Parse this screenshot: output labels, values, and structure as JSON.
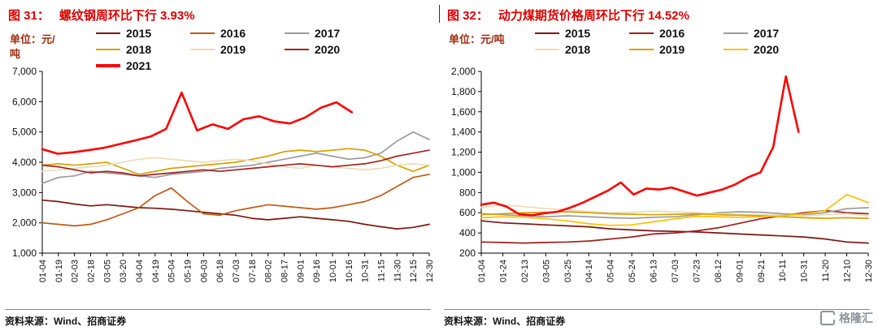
{
  "page": {
    "source_text": "资料来源：Wind、招商证券",
    "logo_text": "格隆汇",
    "accent_title_red": "#dd0000",
    "accent_unit_red": "#a02c12"
  },
  "chart_data": [
    {
      "type": "line",
      "figure_label": "图 31：",
      "title": "螺纹钢周环比下行 3.93%",
      "unit_label": "单位：元/吨",
      "legend_position": "top",
      "grid": false,
      "ylim": [
        1000,
        7000
      ],
      "ytick_values": [
        1000,
        2000,
        3000,
        4000,
        5000,
        6000,
        7000
      ],
      "ytick_labels": [
        "1,000",
        "2,000",
        "3,000",
        "4,000",
        "5,000",
        "6,000",
        "7,000"
      ],
      "xlabels": [
        "01-04",
        "01-19",
        "02-03",
        "02-18",
        "03-05",
        "03-20",
        "04-04",
        "04-19",
        "05-04",
        "05-19",
        "06-03",
        "06-18",
        "07-03",
        "07-18",
        "08-02",
        "08-17",
        "09-01",
        "09-16",
        "10-01",
        "10-16",
        "10-31",
        "11-15",
        "11-30",
        "12-15",
        "12-30"
      ],
      "series": [
        {
          "name": "2015",
          "color": "#7b1712",
          "width": 1.7,
          "span": 1.0,
          "values": [
            2750,
            2700,
            2620,
            2560,
            2600,
            2550,
            2500,
            2480,
            2450,
            2400,
            2350,
            2300,
            2250,
            2150,
            2100,
            2150,
            2200,
            2150,
            2100,
            2050,
            1950,
            1870,
            1800,
            1850,
            1950
          ]
        },
        {
          "name": "2016",
          "color": "#c05a15",
          "width": 1.7,
          "span": 1.0,
          "values": [
            2000,
            1950,
            1900,
            1950,
            2100,
            2300,
            2500,
            2900,
            3150,
            2700,
            2300,
            2250,
            2400,
            2500,
            2600,
            2550,
            2500,
            2450,
            2500,
            2600,
            2700,
            2900,
            3200,
            3500,
            3600
          ]
        },
        {
          "name": "2017",
          "color": "#9b9b9b",
          "width": 1.7,
          "span": 1.0,
          "values": [
            3300,
            3500,
            3550,
            3700,
            3650,
            3600,
            3550,
            3500,
            3600,
            3650,
            3700,
            3800,
            3850,
            3900,
            4000,
            4100,
            4200,
            4300,
            4200,
            4100,
            4150,
            4300,
            4700,
            5000,
            4750
          ]
        },
        {
          "name": "2018",
          "color": "#d8a000",
          "width": 1.7,
          "span": 1.0,
          "values": [
            3900,
            3950,
            3900,
            3950,
            4000,
            3800,
            3600,
            3700,
            3800,
            3850,
            3900,
            3950,
            4000,
            4100,
            4200,
            4350,
            4400,
            4350,
            4400,
            4450,
            4400,
            4200,
            3900,
            3700,
            3900
          ]
        },
        {
          "name": "2019",
          "color": "#e9ddb6",
          "width": 1.7,
          "span": 1.0,
          "values": [
            3700,
            3750,
            3800,
            3850,
            3900,
            4000,
            4100,
            4150,
            4100,
            4050,
            4000,
            4050,
            4100,
            4050,
            3950,
            3850,
            3800,
            3900,
            3850,
            3800,
            3750,
            3800,
            3900,
            3950,
            3900
          ]
        },
        {
          "name": "2020",
          "color": "#a32320",
          "width": 1.7,
          "span": 1.0,
          "values": [
            3900,
            3850,
            3750,
            3650,
            3700,
            3650,
            3550,
            3600,
            3650,
            3700,
            3750,
            3700,
            3750,
            3800,
            3850,
            3900,
            3950,
            3900,
            3850,
            3900,
            3950,
            4050,
            4200,
            4300,
            4400
          ]
        },
        {
          "name": "2021",
          "color": "#ff0000",
          "width": 2.6,
          "span": 0.8,
          "values": [
            4430,
            4280,
            4330,
            4400,
            4480,
            4600,
            4720,
            4850,
            5100,
            6300,
            5050,
            5250,
            5100,
            5420,
            5520,
            5350,
            5280,
            5480,
            5800,
            5980,
            5650
          ]
        }
      ]
    },
    {
      "type": "line",
      "figure_label": "图 32：",
      "title": "动力煤期货价格周环比下行 14.52%",
      "unit_label": "单位：元/吨",
      "legend_position": "top",
      "grid": false,
      "ylim": [
        200,
        2000
      ],
      "ytick_values": [
        200,
        400,
        600,
        800,
        1000,
        1200,
        1400,
        1600,
        1800,
        2000
      ],
      "ytick_labels": [
        "200",
        "400",
        "600",
        "800",
        "1,000",
        "1,200",
        "1,400",
        "1,600",
        "1,800",
        "2,000"
      ],
      "xlabels": [
        "01-04",
        "01-24",
        "02-13",
        "03-05",
        "03-25",
        "04-14",
        "05-04",
        "05-24",
        "06-13",
        "07-03",
        "07-23",
        "08-12",
        "09-01",
        "09-21",
        "10-11",
        "10-31",
        "11-20",
        "12-10",
        "12-30"
      ],
      "series": [
        {
          "name": "2015",
          "color": "#7b1712",
          "width": 1.7,
          "span": 1.0,
          "values": [
            520,
            500,
            490,
            480,
            470,
            460,
            440,
            430,
            420,
            415,
            410,
            400,
            390,
            380,
            370,
            360,
            340,
            310,
            300
          ]
        },
        {
          "name": "2016",
          "color": "#9b211a",
          "width": 1.7,
          "span": 1.0,
          "values": [
            310,
            305,
            300,
            305,
            310,
            320,
            340,
            360,
            390,
            400,
            420,
            450,
            495,
            540,
            570,
            600,
            620,
            600,
            590
          ]
        },
        {
          "name": "2017",
          "color": "#9b9b9b",
          "width": 1.7,
          "span": 1.0,
          "values": [
            590,
            580,
            570,
            560,
            570,
            560,
            550,
            545,
            555,
            560,
            580,
            600,
            610,
            605,
            590,
            580,
            600,
            640,
            650
          ]
        },
        {
          "name": "2018",
          "color": "#e9ddb6",
          "width": 1.7,
          "span": 1.0,
          "values": [
            650,
            680,
            660,
            640,
            630,
            610,
            600,
            605,
            615,
            610,
            600,
            590,
            585,
            580,
            575,
            570,
            580,
            590,
            570
          ]
        },
        {
          "name": "2019",
          "color": "#d8a000",
          "width": 1.7,
          "span": 1.0,
          "values": [
            580,
            590,
            600,
            605,
            610,
            600,
            590,
            585,
            580,
            585,
            590,
            580,
            575,
            570,
            560,
            550,
            545,
            550,
            545
          ]
        },
        {
          "name": "2020",
          "color": "#ffc000",
          "width": 1.7,
          "span": 1.0,
          "values": [
            550,
            560,
            555,
            540,
            520,
            490,
            475,
            480,
            510,
            540,
            565,
            560,
            555,
            560,
            570,
            590,
            620,
            780,
            700
          ]
        },
        {
          "name": "2021",
          "color": "#ff0000",
          "width": 2.6,
          "span": 0.82,
          "in_legend": false,
          "values": [
            680,
            700,
            660,
            585,
            575,
            595,
            610,
            650,
            700,
            760,
            820,
            900,
            780,
            840,
            830,
            850,
            810,
            770,
            800,
            830,
            880,
            950,
            1000,
            1250,
            1950,
            1400
          ]
        }
      ]
    }
  ]
}
